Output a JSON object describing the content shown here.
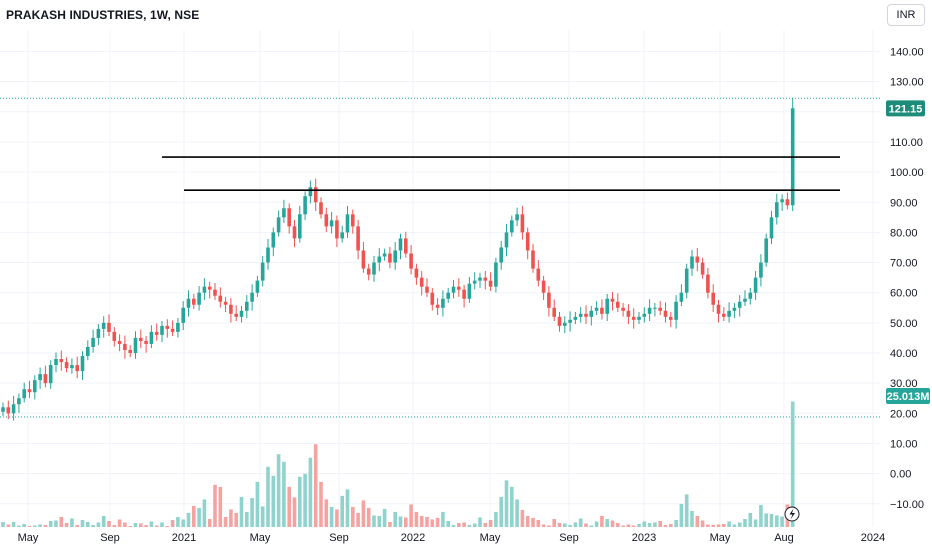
{
  "header": {
    "title": "PRAKASH INDUSTRIES, 1W, NSE",
    "currency": "INR"
  },
  "colors": {
    "up": "#26a69a",
    "down": "#ef5350",
    "vol_up": "#8fd3cc",
    "vol_down": "#f5a3a1",
    "price_badge": "#1e8c7a",
    "line": "#000000"
  },
  "chart_data": {
    "type": "candlestick",
    "title": "PRAKASH INDUSTRIES, 1W, NSE",
    "price_axis": {
      "ticks": [
        "140.00",
        "130.00",
        "120.00",
        "110.00",
        "100.00",
        "90.00",
        "80.00",
        "70.00",
        "60.00",
        "50.00",
        "40.00",
        "30.00",
        "20.00",
        "10.00",
        "0.00",
        "−10.00"
      ],
      "range": [
        -18,
        145
      ]
    },
    "time_axis": {
      "ticks": [
        "May",
        "Sep",
        "2021",
        "May",
        "Sep",
        "2022",
        "May",
        "Sep",
        "2023",
        "May",
        "Aug",
        "2024"
      ]
    },
    "last_price": "121.15",
    "last_volume": "25.013M",
    "horizontal_lines": [
      105,
      94
    ],
    "close": [
      22,
      20,
      23,
      25,
      28,
      27,
      31,
      33,
      30,
      36,
      38,
      37,
      35,
      36,
      34,
      39,
      42,
      45,
      48,
      50,
      47,
      44,
      43,
      41,
      40,
      45,
      44,
      43,
      47,
      46,
      49,
      48,
      47,
      50,
      55,
      58,
      56,
      60,
      62,
      61,
      59,
      57,
      56,
      53,
      52,
      54,
      57,
      60,
      64,
      70,
      75,
      80,
      85,
      88,
      82,
      78,
      86,
      92,
      95,
      90,
      86,
      82,
      84,
      78,
      80,
      86,
      82,
      74,
      68,
      66,
      70,
      72,
      73,
      70,
      74,
      78,
      73,
      68,
      65,
      62,
      60,
      56,
      55,
      58,
      60,
      62,
      61,
      58,
      63,
      64,
      65,
      64,
      62,
      70,
      75,
      80,
      84,
      86,
      80,
      74,
      68,
      64,
      60,
      55,
      52,
      49,
      50,
      51,
      52,
      53,
      52,
      54,
      55,
      53,
      58,
      57,
      55,
      54,
      52,
      51,
      52,
      53,
      55,
      55,
      54,
      52,
      51,
      57,
      60,
      68,
      72,
      70,
      66,
      60,
      56,
      53,
      52,
      54,
      55,
      57,
      58,
      60,
      65,
      70,
      78,
      85,
      90,
      91,
      89,
      121.15
    ],
    "volume_million": [
      1.0,
      0.5,
      1.0,
      0.3,
      0.6,
      0.2,
      0.3,
      0.5,
      0.4,
      1.2,
      1.3,
      2.0,
      0.8,
      1.7,
      0.4,
      1.4,
      1.0,
      0.4,
      0.9,
      2.2,
      1.2,
      0.4,
      1.5,
      0.9,
      0.2,
      0.8,
      0.7,
      0.4,
      1.1,
      0.3,
      0.9,
      0.2,
      1.4,
      2.0,
      1.5,
      2.8,
      4.2,
      3.8,
      5.5,
      1.6,
      8.4,
      8.0,
      2.0,
      3.5,
      2.8,
      6.0,
      3.0,
      5.8,
      9.0,
      4.1,
      12.0,
      10.2,
      14.5,
      13.0,
      8.0,
      5.9,
      10.0,
      10.6,
      13.8,
      16.5,
      9.0,
      5.5,
      4.0,
      3.5,
      6.2,
      7.5,
      4.0,
      2.8,
      5.3,
      3.8,
      2.3,
      2.2,
      3.6,
      1.0,
      3.0,
      2.1,
      1.9,
      4.5,
      3.0,
      2.2,
      2.0,
      1.5,
      1.8,
      3.0,
      1.2,
      0.4,
      0.8,
      0.9,
      0.4,
      0.7,
      1.9,
      0.8,
      1.4,
      3.0,
      6.0,
      9.3,
      8.0,
      5.5,
      3.4,
      2.2,
      1.8,
      1.4,
      0.5,
      0.3,
      1.6,
      0.8,
      0.7,
      0.4,
      0.9,
      1.7,
      0.7,
      0.3,
      1.1,
      2.2,
      1.6,
      1.3,
      0.8,
      0.3,
      0.5,
      0.3,
      0.6,
      1.1,
      0.8,
      0.9,
      1.2,
      0.4,
      0.6,
      1.4,
      4.6,
      6.5,
      3.2,
      2.2,
      1.3,
      0.5,
      0.4,
      0.5,
      0.6,
      1.1,
      0.5,
      0.9,
      1.6,
      2.8,
      1.5,
      4.4,
      2.7,
      2.6,
      2.3,
      2.1,
      4.5,
      25.013
    ]
  }
}
